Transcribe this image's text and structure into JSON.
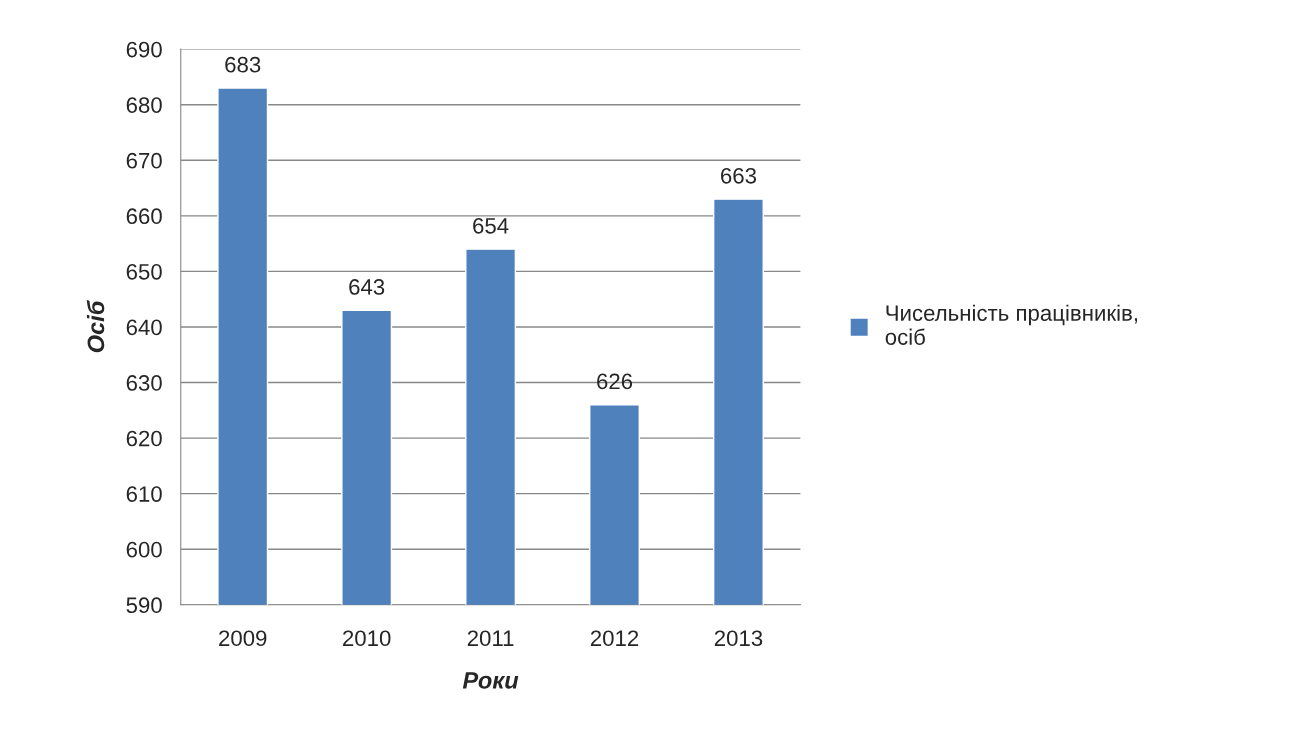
{
  "chart_data": {
    "type": "bar",
    "xlabel": "Роки",
    "ylabel": "Осіб",
    "categories": [
      "2009",
      "2010",
      "2011",
      "2012",
      "2013"
    ],
    "series": [
      {
        "name": "Чисельність працівників, осіб",
        "color": "#4f81bd",
        "values": [
          683,
          643,
          654,
          626,
          663
        ]
      }
    ],
    "ylim": [
      590,
      690
    ],
    "yticks": [
      590,
      600,
      610,
      620,
      630,
      640,
      650,
      660,
      670,
      680,
      690
    ],
    "grid": "y",
    "legend": "right",
    "data_labels": true
  }
}
